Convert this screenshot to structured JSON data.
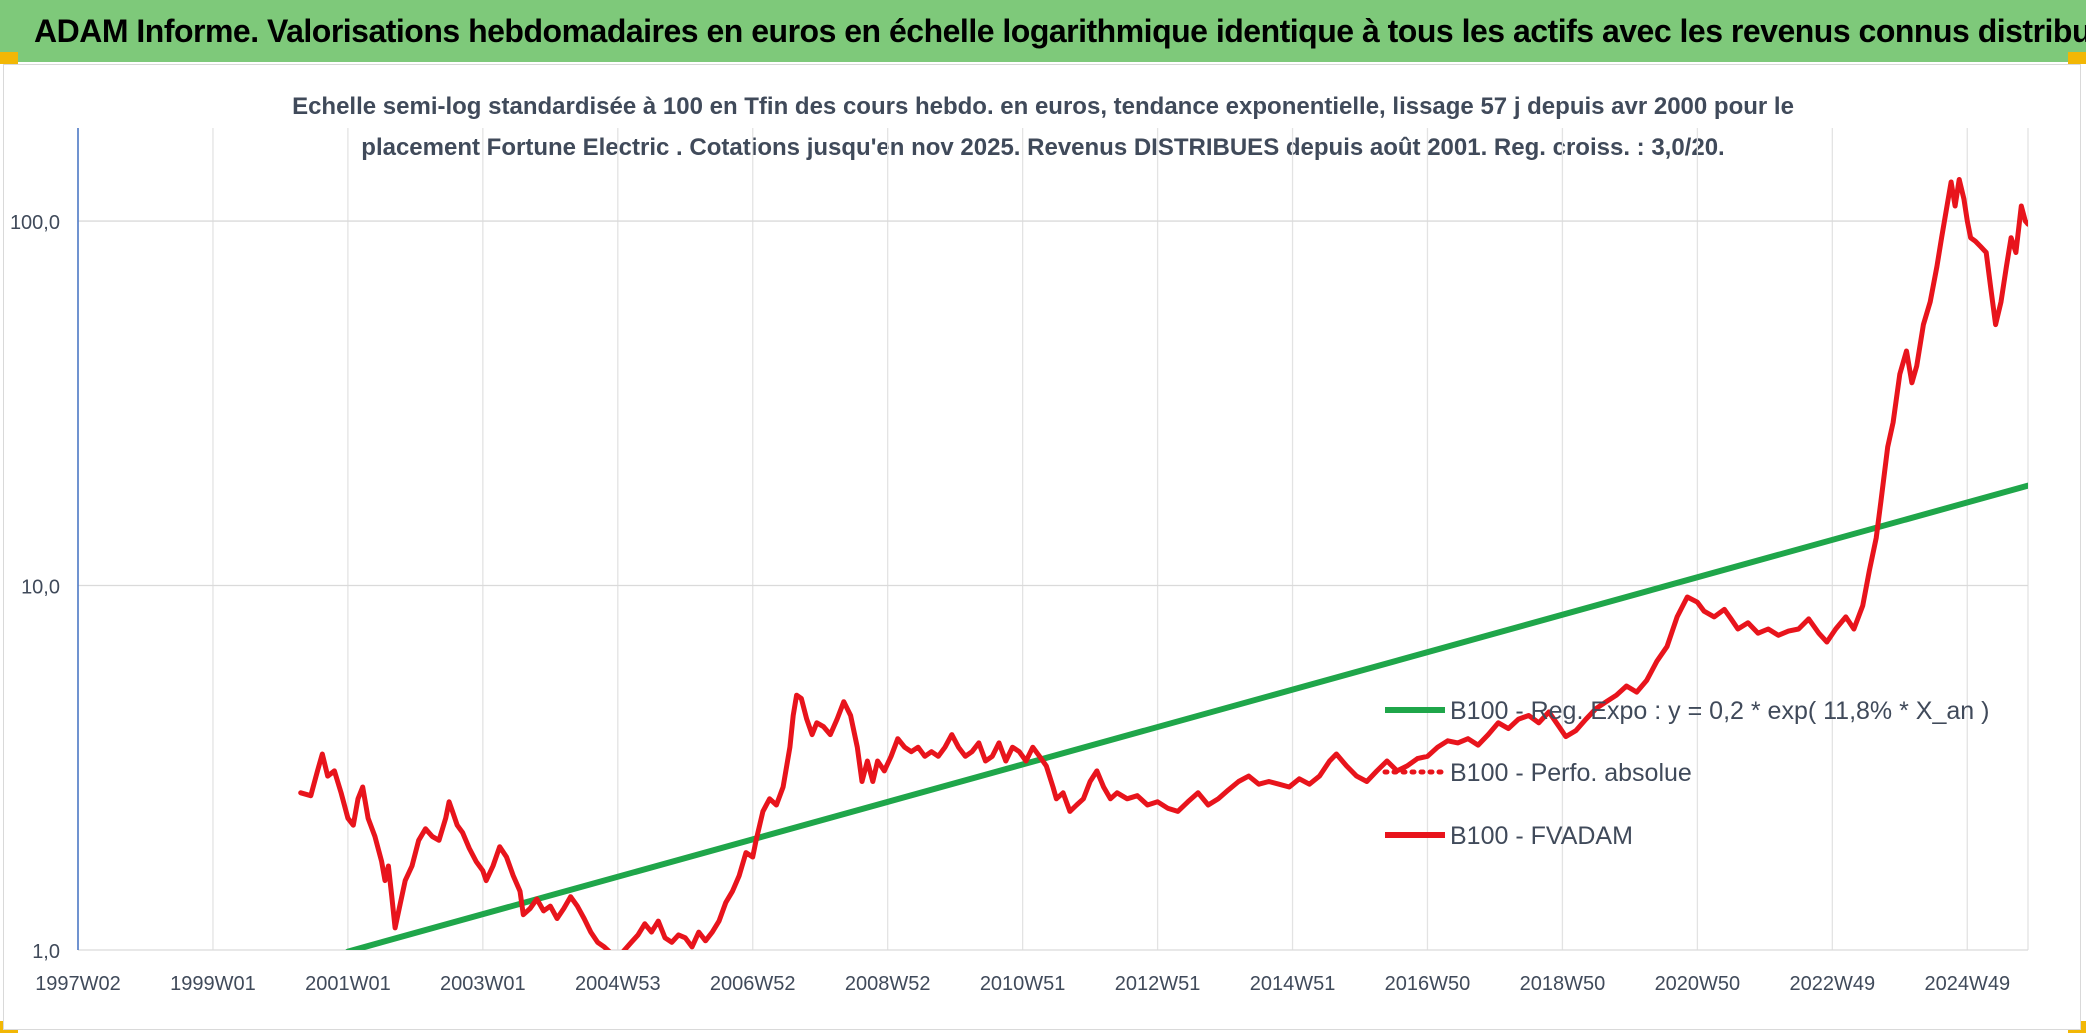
{
  "header": {
    "title": "ADAM Informe. Valorisations hebdomadaires en euros en échelle logarithmique identique à tous les actifs avec les revenus connus distribués"
  },
  "chart_data": {
    "type": "line",
    "title": "",
    "subtitle_lines": [
      "Echelle semi-log standardisée à 100 en Tfin des cours hebdo. en euros, tendance exponentielle, lissage 57 j depuis avr 2000 pour le",
      "placement Fortune Electric . Cotations jusqu'en nov 2025. Revenus DISTRIBUES depuis août 2001. Reg. croiss. : 3,0/20."
    ],
    "xlabel": "",
    "ylabel": "",
    "y_scale": "log",
    "ylim": [
      1,
      180
    ],
    "xlim": [
      1997.0,
      2025.9
    ],
    "y_ticks": [
      {
        "value": 1,
        "label": "1,0"
      },
      {
        "value": 10,
        "label": "10,0"
      },
      {
        "value": 100,
        "label": "100,0"
      }
    ],
    "x_ticks": [
      {
        "value": 1997.0,
        "label": "1997W02"
      },
      {
        "value": 1999.0,
        "label": "1999W01"
      },
      {
        "value": 2001.0,
        "label": "2001W01"
      },
      {
        "value": 2003.0,
        "label": "2003W01"
      },
      {
        "value": 2005.0,
        "label": "2004W53"
      },
      {
        "value": 2007.0,
        "label": "2006W52"
      },
      {
        "value": 2009.0,
        "label": "2008W52"
      },
      {
        "value": 2011.0,
        "label": "2010W51"
      },
      {
        "value": 2013.0,
        "label": "2012W51"
      },
      {
        "value": 2015.0,
        "label": "2014W51"
      },
      {
        "value": 2017.0,
        "label": "2016W50"
      },
      {
        "value": 2019.0,
        "label": "2018W50"
      },
      {
        "value": 2021.0,
        "label": "2020W50"
      },
      {
        "value": 2023.0,
        "label": "2022W49"
      },
      {
        "value": 2025.0,
        "label": "2024W49"
      }
    ],
    "grid": true,
    "legend_position": "right",
    "series": [
      {
        "name": "B100 - Reg. Expo : y = 0,2 * exp( 11,8% *  X_an )",
        "color": "#1fa64a",
        "style": "solid",
        "points": [
          [
            2001.0,
            0.99
          ],
          [
            2025.9,
            18.8
          ]
        ]
      },
      {
        "name": "B100 - Perfo. absolue",
        "color": "#e8141c",
        "style": "dotted",
        "points": []
      },
      {
        "name": "B100 - FVADAM",
        "color": "#e8141c",
        "style": "solid",
        "points": [
          [
            2000.3,
            2.7
          ],
          [
            2000.45,
            2.65
          ],
          [
            2000.55,
            3.1
          ],
          [
            2000.62,
            3.45
          ],
          [
            2000.7,
            3.0
          ],
          [
            2000.8,
            3.1
          ],
          [
            2000.9,
            2.7
          ],
          [
            2001.0,
            2.3
          ],
          [
            2001.08,
            2.2
          ],
          [
            2001.15,
            2.6
          ],
          [
            2001.22,
            2.8
          ],
          [
            2001.3,
            2.3
          ],
          [
            2001.4,
            2.05
          ],
          [
            2001.5,
            1.75
          ],
          [
            2001.55,
            1.55
          ],
          [
            2001.6,
            1.7
          ],
          [
            2001.65,
            1.4
          ],
          [
            2001.7,
            1.15
          ],
          [
            2001.78,
            1.35
          ],
          [
            2001.85,
            1.55
          ],
          [
            2001.95,
            1.7
          ],
          [
            2002.05,
            2.0
          ],
          [
            2002.15,
            2.15
          ],
          [
            2002.25,
            2.05
          ],
          [
            2002.35,
            2.0
          ],
          [
            2002.45,
            2.3
          ],
          [
            2002.5,
            2.55
          ],
          [
            2002.55,
            2.4
          ],
          [
            2002.62,
            2.2
          ],
          [
            2002.7,
            2.1
          ],
          [
            2002.8,
            1.9
          ],
          [
            2002.9,
            1.75
          ],
          [
            2003.0,
            1.65
          ],
          [
            2003.05,
            1.55
          ],
          [
            2003.15,
            1.7
          ],
          [
            2003.25,
            1.92
          ],
          [
            2003.35,
            1.8
          ],
          [
            2003.45,
            1.6
          ],
          [
            2003.55,
            1.45
          ],
          [
            2003.6,
            1.25
          ],
          [
            2003.7,
            1.3
          ],
          [
            2003.8,
            1.38
          ],
          [
            2003.9,
            1.28
          ],
          [
            2004.0,
            1.32
          ],
          [
            2004.1,
            1.22
          ],
          [
            2004.2,
            1.3
          ],
          [
            2004.3,
            1.4
          ],
          [
            2004.4,
            1.32
          ],
          [
            2004.5,
            1.22
          ],
          [
            2004.6,
            1.12
          ],
          [
            2004.7,
            1.05
          ],
          [
            2004.8,
            1.02
          ],
          [
            2004.9,
            0.98
          ],
          [
            2005.0,
            0.95
          ],
          [
            2005.1,
            1.0
          ],
          [
            2005.2,
            1.05
          ],
          [
            2005.3,
            1.1
          ],
          [
            2005.4,
            1.18
          ],
          [
            2005.5,
            1.12
          ],
          [
            2005.6,
            1.2
          ],
          [
            2005.7,
            1.08
          ],
          [
            2005.8,
            1.05
          ],
          [
            2005.9,
            1.1
          ],
          [
            2006.0,
            1.08
          ],
          [
            2006.1,
            1.02
          ],
          [
            2006.2,
            1.12
          ],
          [
            2006.3,
            1.06
          ],
          [
            2006.4,
            1.12
          ],
          [
            2006.5,
            1.2
          ],
          [
            2006.6,
            1.35
          ],
          [
            2006.7,
            1.45
          ],
          [
            2006.8,
            1.6
          ],
          [
            2006.9,
            1.85
          ],
          [
            2007.0,
            1.8
          ],
          [
            2007.05,
            2.0
          ],
          [
            2007.15,
            2.4
          ],
          [
            2007.25,
            2.6
          ],
          [
            2007.35,
            2.5
          ],
          [
            2007.45,
            2.8
          ],
          [
            2007.55,
            3.6
          ],
          [
            2007.6,
            4.4
          ],
          [
            2007.65,
            5.0
          ],
          [
            2007.72,
            4.9
          ],
          [
            2007.8,
            4.3
          ],
          [
            2007.88,
            3.9
          ],
          [
            2007.95,
            4.2
          ],
          [
            2008.05,
            4.1
          ],
          [
            2008.15,
            3.9
          ],
          [
            2008.25,
            4.3
          ],
          [
            2008.35,
            4.8
          ],
          [
            2008.45,
            4.4
          ],
          [
            2008.55,
            3.6
          ],
          [
            2008.62,
            2.9
          ],
          [
            2008.7,
            3.3
          ],
          [
            2008.78,
            2.9
          ],
          [
            2008.85,
            3.3
          ],
          [
            2008.95,
            3.1
          ],
          [
            2009.05,
            3.4
          ],
          [
            2009.15,
            3.8
          ],
          [
            2009.25,
            3.6
          ],
          [
            2009.35,
            3.5
          ],
          [
            2009.45,
            3.6
          ],
          [
            2009.55,
            3.4
          ],
          [
            2009.65,
            3.5
          ],
          [
            2009.75,
            3.4
          ],
          [
            2009.85,
            3.6
          ],
          [
            2009.95,
            3.9
          ],
          [
            2010.05,
            3.6
          ],
          [
            2010.15,
            3.4
          ],
          [
            2010.25,
            3.5
          ],
          [
            2010.35,
            3.7
          ],
          [
            2010.45,
            3.3
          ],
          [
            2010.55,
            3.4
          ],
          [
            2010.65,
            3.7
          ],
          [
            2010.75,
            3.3
          ],
          [
            2010.85,
            3.6
          ],
          [
            2010.95,
            3.5
          ],
          [
            2011.05,
            3.3
          ],
          [
            2011.15,
            3.6
          ],
          [
            2011.25,
            3.4
          ],
          [
            2011.35,
            3.2
          ],
          [
            2011.45,
            2.8
          ],
          [
            2011.5,
            2.6
          ],
          [
            2011.6,
            2.7
          ],
          [
            2011.7,
            2.4
          ],
          [
            2011.8,
            2.5
          ],
          [
            2011.9,
            2.6
          ],
          [
            2012.0,
            2.9
          ],
          [
            2012.1,
            3.1
          ],
          [
            2012.2,
            2.8
          ],
          [
            2012.3,
            2.6
          ],
          [
            2012.4,
            2.7
          ],
          [
            2012.55,
            2.6
          ],
          [
            2012.7,
            2.65
          ],
          [
            2012.85,
            2.5
          ],
          [
            2013.0,
            2.55
          ],
          [
            2013.15,
            2.45
          ],
          [
            2013.3,
            2.4
          ],
          [
            2013.45,
            2.55
          ],
          [
            2013.6,
            2.7
          ],
          [
            2013.75,
            2.5
          ],
          [
            2013.9,
            2.6
          ],
          [
            2014.05,
            2.75
          ],
          [
            2014.2,
            2.9
          ],
          [
            2014.35,
            3.0
          ],
          [
            2014.5,
            2.85
          ],
          [
            2014.65,
            2.9
          ],
          [
            2014.8,
            2.85
          ],
          [
            2014.95,
            2.8
          ],
          [
            2015.1,
            2.95
          ],
          [
            2015.25,
            2.85
          ],
          [
            2015.4,
            3.0
          ],
          [
            2015.55,
            3.3
          ],
          [
            2015.65,
            3.45
          ],
          [
            2015.8,
            3.2
          ],
          [
            2015.95,
            3.0
          ],
          [
            2016.1,
            2.9
          ],
          [
            2016.25,
            3.1
          ],
          [
            2016.4,
            3.3
          ],
          [
            2016.55,
            3.1
          ],
          [
            2016.7,
            3.2
          ],
          [
            2016.85,
            3.35
          ],
          [
            2017.0,
            3.4
          ],
          [
            2017.15,
            3.6
          ],
          [
            2017.3,
            3.75
          ],
          [
            2017.45,
            3.7
          ],
          [
            2017.6,
            3.8
          ],
          [
            2017.75,
            3.65
          ],
          [
            2017.9,
            3.9
          ],
          [
            2018.05,
            4.2
          ],
          [
            2018.2,
            4.05
          ],
          [
            2018.35,
            4.3
          ],
          [
            2018.5,
            4.4
          ],
          [
            2018.65,
            4.2
          ],
          [
            2018.8,
            4.5
          ],
          [
            2018.95,
            4.1
          ],
          [
            2019.05,
            3.85
          ],
          [
            2019.2,
            4.0
          ],
          [
            2019.35,
            4.3
          ],
          [
            2019.5,
            4.6
          ],
          [
            2019.65,
            4.8
          ],
          [
            2019.8,
            5.0
          ],
          [
            2019.95,
            5.3
          ],
          [
            2020.1,
            5.1
          ],
          [
            2020.25,
            5.5
          ],
          [
            2020.4,
            6.2
          ],
          [
            2020.55,
            6.8
          ],
          [
            2020.7,
            8.2
          ],
          [
            2020.85,
            9.3
          ],
          [
            2021.0,
            9.0
          ],
          [
            2021.1,
            8.5
          ],
          [
            2021.25,
            8.2
          ],
          [
            2021.4,
            8.6
          ],
          [
            2021.5,
            8.1
          ],
          [
            2021.6,
            7.6
          ],
          [
            2021.75,
            7.9
          ],
          [
            2021.9,
            7.4
          ],
          [
            2022.05,
            7.6
          ],
          [
            2022.2,
            7.3
          ],
          [
            2022.35,
            7.5
          ],
          [
            2022.5,
            7.6
          ],
          [
            2022.65,
            8.1
          ],
          [
            2022.8,
            7.4
          ],
          [
            2022.92,
            7.0
          ],
          [
            2023.05,
            7.6
          ],
          [
            2023.2,
            8.2
          ],
          [
            2023.32,
            7.6
          ],
          [
            2023.45,
            8.8
          ],
          [
            2023.55,
            11.0
          ],
          [
            2023.65,
            13.5
          ],
          [
            2023.72,
            17.0
          ],
          [
            2023.82,
            24.0
          ],
          [
            2023.9,
            28.0
          ],
          [
            2024.0,
            38.0
          ],
          [
            2024.1,
            44.0
          ],
          [
            2024.18,
            36.0
          ],
          [
            2024.25,
            40.0
          ],
          [
            2024.35,
            52.0
          ],
          [
            2024.45,
            60.0
          ],
          [
            2024.55,
            75.0
          ],
          [
            2024.62,
            90.0
          ],
          [
            2024.7,
            110.0
          ],
          [
            2024.76,
            128.0
          ],
          [
            2024.82,
            110.0
          ],
          [
            2024.88,
            130.0
          ],
          [
            2024.95,
            115.0
          ],
          [
            2025.0,
            100.0
          ],
          [
            2025.05,
            90.0
          ],
          [
            2025.12,
            88.0
          ],
          [
            2025.2,
            85.0
          ],
          [
            2025.28,
            82.0
          ],
          [
            2025.35,
            65.0
          ],
          [
            2025.42,
            52.0
          ],
          [
            2025.5,
            60.0
          ],
          [
            2025.58,
            75.0
          ],
          [
            2025.65,
            90.0
          ],
          [
            2025.72,
            82.0
          ],
          [
            2025.8,
            110.0
          ],
          [
            2025.86,
            100.0
          ],
          [
            2025.9,
            98.0
          ]
        ]
      }
    ]
  }
}
